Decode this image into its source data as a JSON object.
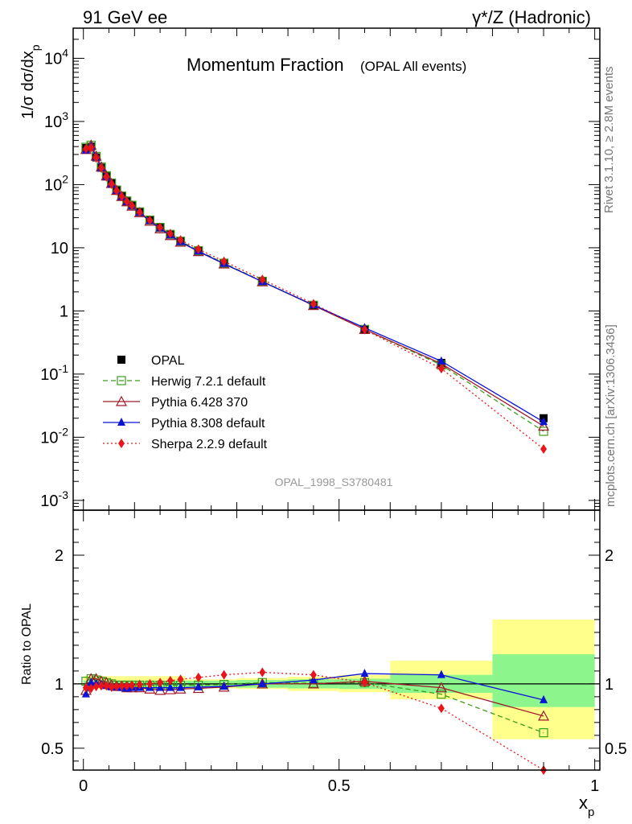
{
  "header": {
    "left": "91 GeV ee",
    "right": "γ*/Z (Hadronic)"
  },
  "side": {
    "rivet": "Rivet 3.1.10, ≥ 2.8M events",
    "mcplots": "mcplots.cern.ch [arXiv:1306.3436]"
  },
  "chart_data": [
    {
      "type": "line",
      "title": "Momentum Fraction",
      "subtitle": "(OPAL All events)",
      "ylabel": "1/σ dσ/dx_p",
      "yscale": "log",
      "ylim": [
        0.0007,
        30000
      ],
      "xlim": [
        -0.02,
        1.01
      ],
      "yticks": [
        "10^{-3}",
        "10^{-2}",
        "10^{-1}",
        "1",
        "10",
        "10^{2}",
        "10^{3}",
        "10^{4}"
      ],
      "ytick_values": [
        0.001,
        0.01,
        0.1,
        1,
        10,
        100,
        1000,
        10000
      ],
      "annotation": "OPAL_1998_S3780481",
      "legend_position": "lower-left",
      "x": [
        0.005,
        0.015,
        0.025,
        0.035,
        0.045,
        0.055,
        0.065,
        0.075,
        0.085,
        0.095,
        0.11,
        0.13,
        0.15,
        0.17,
        0.19,
        0.225,
        0.275,
        0.35,
        0.45,
        0.55,
        0.7,
        0.9
      ],
      "series": [
        {
          "name": "OPAL",
          "color": "#000000",
          "marker": "square-filled",
          "values": [
            380,
            400,
            270,
            185,
            135,
            105,
            82,
            66,
            55,
            47,
            37,
            27.5,
            21,
            16.3,
            12.8,
            9.0,
            5.7,
            2.9,
            1.22,
            0.5,
            0.15,
            0.02
          ]
        },
        {
          "name": "Herwig 7.2.1 default",
          "color": "#3a9e1a",
          "marker": "square-open",
          "dash": "6,4",
          "values": [
            390,
            420,
            280,
            190,
            138,
            106,
            82,
            66,
            55,
            47,
            37,
            27.5,
            21,
            16.3,
            12.7,
            9.0,
            5.7,
            2.95,
            1.23,
            0.51,
            0.139,
            0.0124
          ]
        },
        {
          "name": "Pythia 6.428 370",
          "color": "#9e1a2a",
          "marker": "triangle-open",
          "values": [
            360,
            420,
            282,
            190,
            137,
            104,
            81,
            65,
            53.5,
            45.6,
            35.9,
            26.3,
            20.0,
            15.6,
            12.3,
            8.7,
            5.55,
            2.9,
            1.22,
            0.51,
            0.146,
            0.015
          ]
        },
        {
          "name": "Pythia 8.308 default",
          "color": "#0a14d6",
          "marker": "triangle-filled",
          "values": [
            350,
            405,
            270,
            184,
            133,
            102,
            80,
            64,
            53,
            45.6,
            35.9,
            26.6,
            20.4,
            15.8,
            12.4,
            8.8,
            5.6,
            2.9,
            1.24,
            0.54,
            0.16,
            0.0175
          ]
        },
        {
          "name": "Sherpa 2.2.9 default",
          "color": "#e8161c",
          "marker": "diamond-filled",
          "dash": "2,3",
          "values": [
            370,
            385,
            265,
            182,
            133,
            102,
            80,
            65,
            54,
            46.5,
            36.6,
            27.2,
            21.0,
            16.8,
            13.3,
            9.5,
            6.1,
            3.15,
            1.3,
            0.505,
            0.122,
            0.0065
          ]
        }
      ]
    },
    {
      "type": "line",
      "ylabel": "Ratio to OPAL",
      "xlabel": "x_p",
      "ylim": [
        0.33,
        2.35
      ],
      "xlim": [
        -0.02,
        1.01
      ],
      "yticks": [
        "0.5",
        "1",
        "2"
      ],
      "ytick_values": [
        0.5,
        1,
        2
      ],
      "xticks": [
        "0",
        "0.5",
        "1"
      ],
      "xtick_values": [
        0,
        0.5,
        1
      ],
      "uncertainty_bands": [
        {
          "x_from": 0.0,
          "x_to": 0.2,
          "inner": [
            0.975,
            1.025
          ],
          "outer": [
            0.96,
            1.06
          ]
        },
        {
          "x_from": 0.2,
          "x_to": 0.3,
          "inner": [
            0.975,
            1.025
          ],
          "outer": [
            0.965,
            1.035
          ]
        },
        {
          "x_from": 0.3,
          "x_to": 0.4,
          "inner": [
            0.97,
            1.03
          ],
          "outer": [
            0.96,
            1.045
          ]
        },
        {
          "x_from": 0.4,
          "x_to": 0.5,
          "inner": [
            0.965,
            1.035
          ],
          "outer": [
            0.945,
            1.055
          ]
        },
        {
          "x_from": 0.5,
          "x_to": 0.6,
          "inner": [
            0.96,
            1.04
          ],
          "outer": [
            0.935,
            1.07
          ]
        },
        {
          "x_from": 0.6,
          "x_to": 0.8,
          "inner": [
            0.93,
            1.07
          ],
          "outer": [
            0.88,
            1.18
          ]
        },
        {
          "x_from": 0.8,
          "x_to": 1.0,
          "inner": [
            0.82,
            1.23
          ],
          "outer": [
            0.57,
            1.5
          ]
        }
      ],
      "series": [
        {
          "name": "Herwig 7.2.1 default",
          "color": "#3a9e1a",
          "marker": "square-open",
          "dash": "6,4",
          "values": [
            1.02,
            1.04,
            1.03,
            1.02,
            1.01,
            1.0,
            0.99,
            0.99,
            0.99,
            0.99,
            0.99,
            0.99,
            0.99,
            0.99,
            0.99,
            0.99,
            0.995,
            1.01,
            1.005,
            1.01,
            0.92,
            0.62
          ]
        },
        {
          "name": "Pythia 6.428 370",
          "color": "#9e1a2a",
          "marker": "triangle-open",
          "values": [
            0.95,
            1.04,
            1.04,
            1.02,
            1.01,
            0.99,
            0.98,
            0.98,
            0.97,
            0.97,
            0.97,
            0.96,
            0.95,
            0.955,
            0.96,
            0.965,
            0.975,
            1.0,
            1.0,
            1.02,
            0.97,
            0.75
          ]
        },
        {
          "name": "Pythia 8.308 default",
          "color": "#0a14d6",
          "marker": "triangle-filled",
          "values": [
            0.92,
            1.01,
            1.0,
            0.995,
            0.985,
            0.975,
            0.975,
            0.97,
            0.965,
            0.97,
            0.97,
            0.97,
            0.97,
            0.97,
            0.97,
            0.975,
            0.98,
            1.0,
            1.03,
            1.08,
            1.07,
            0.875
          ]
        },
        {
          "name": "Sherpa 2.2.9 default",
          "color": "#e8161c",
          "marker": "diamond-filled",
          "dash": "2,3",
          "values": [
            0.97,
            0.965,
            0.98,
            0.985,
            0.985,
            0.975,
            0.98,
            0.985,
            0.985,
            0.99,
            0.995,
            1.0,
            1.01,
            1.025,
            1.035,
            1.05,
            1.07,
            1.09,
            1.07,
            1.01,
            0.81,
            0.33
          ]
        }
      ]
    }
  ]
}
